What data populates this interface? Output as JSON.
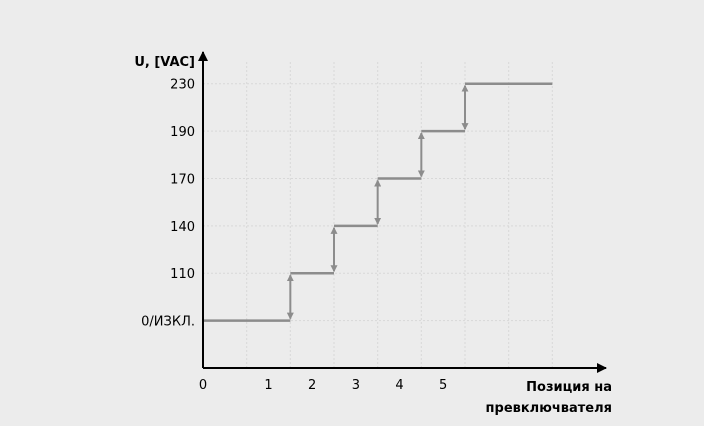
{
  "chart_data": {
    "type": "line",
    "ylabel": "U, [VAC]",
    "xlabel_lines": [
      "Позиция на",
      "превключвателя"
    ],
    "y_tick_labels": [
      "0/ИЗКЛ.",
      "110",
      "140",
      "170",
      "190",
      "230"
    ],
    "y_tick_values": [
      0,
      1,
      2,
      3,
      4,
      5
    ],
    "x_tick_labels": [
      "0",
      "1",
      "2",
      "3",
      "4",
      "5"
    ],
    "x_tick_values": [
      0,
      1.5,
      2.5,
      3.5,
      4.5,
      5.5
    ],
    "series": [
      {
        "step": true,
        "x": [
          0,
          2,
          3,
          4,
          5,
          6,
          8
        ],
        "y": [
          0,
          1,
          2,
          3,
          4,
          5,
          5
        ]
      }
    ],
    "step_arrows": [
      {
        "x": 2,
        "from": 0,
        "to": 1
      },
      {
        "x": 3,
        "from": 1,
        "to": 2
      },
      {
        "x": 4,
        "from": 2,
        "to": 3
      },
      {
        "x": 5,
        "from": 3,
        "to": 4
      },
      {
        "x": 6,
        "from": 4,
        "to": 5
      }
    ],
    "grid": true,
    "xlim": [
      0,
      9
    ],
    "ylim": [
      -1,
      5.5
    ],
    "colors": {
      "line": "#8c8c8c",
      "arrow": "#8c8c8c",
      "axis": "#000000",
      "grid": "#d8d8d8",
      "background": "#ececec"
    }
  }
}
